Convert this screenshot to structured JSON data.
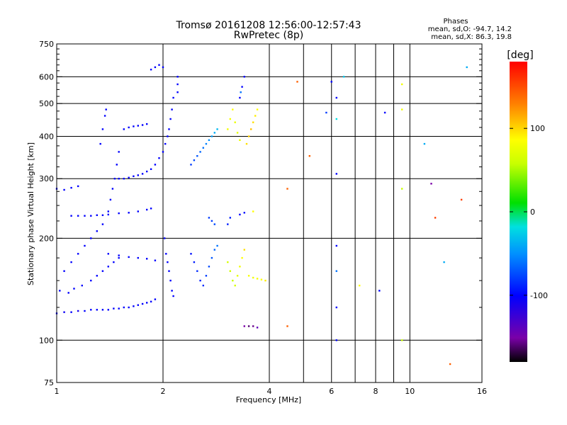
{
  "chart_data": {
    "type": "scatter",
    "title": "Tromsø 20161208 12:56:00-12:57:43",
    "subtitle": "RwPretec (8p)",
    "xlabel": "Frequency [MHz]",
    "ylabel": "Stationary phase Virtual Height [km]",
    "x_scale": "log",
    "y_scale": "log",
    "xlim": [
      1,
      16
    ],
    "ylim": [
      75,
      750
    ],
    "x_ticks": [
      1,
      2,
      4,
      6,
      8,
      10,
      16
    ],
    "x_tick_labels": [
      "1",
      "2",
      "4",
      "6",
      "8",
      "10",
      "16"
    ],
    "x_minor_ticks": [
      5,
      7,
      9
    ],
    "y_ticks": [
      75,
      100,
      200,
      300,
      400,
      500,
      600,
      750
    ],
    "y_tick_labels": [
      "75",
      "100",
      "200",
      "300",
      "400",
      "500",
      "600",
      "750"
    ],
    "y_minor_ticks": [
      125,
      150,
      175,
      225,
      250,
      275,
      325,
      350,
      375,
      425,
      450,
      475,
      525,
      550,
      575,
      625,
      650,
      675,
      700,
      725
    ],
    "grid": true,
    "colorbar": {
      "label": "[deg]",
      "range": [
        -180,
        180
      ],
      "ticks": [
        100,
        0,
        -100
      ],
      "tick_labels": [
        "100",
        "0",
        "-100"
      ]
    },
    "phases": {
      "title": "Phases",
      "line_o": "mean, sd,O: -94.7, 14.2",
      "line_x": "mean, sd,X:  86.3, 19.8"
    },
    "points": [
      {
        "f": 1.0,
        "h": 120,
        "p": -100
      },
      {
        "f": 1.05,
        "h": 121,
        "p": -105
      },
      {
        "f": 1.1,
        "h": 121,
        "p": -100
      },
      {
        "f": 1.15,
        "h": 122,
        "p": -110
      },
      {
        "f": 1.2,
        "h": 122,
        "p": -100
      },
      {
        "f": 1.25,
        "h": 123,
        "p": -100
      },
      {
        "f": 1.3,
        "h": 123,
        "p": -100
      },
      {
        "f": 1.35,
        "h": 123,
        "p": -100
      },
      {
        "f": 1.4,
        "h": 123,
        "p": -100
      },
      {
        "f": 1.45,
        "h": 124,
        "p": -100
      },
      {
        "f": 1.5,
        "h": 124,
        "p": -100
      },
      {
        "f": 1.55,
        "h": 125,
        "p": -100
      },
      {
        "f": 1.6,
        "h": 125,
        "p": -100
      },
      {
        "f": 1.65,
        "h": 126,
        "p": -100
      },
      {
        "f": 1.7,
        "h": 127,
        "p": -100
      },
      {
        "f": 1.75,
        "h": 128,
        "p": -100
      },
      {
        "f": 1.8,
        "h": 129,
        "p": -100
      },
      {
        "f": 1.85,
        "h": 130,
        "p": -100
      },
      {
        "f": 1.9,
        "h": 132,
        "p": -100
      },
      {
        "f": 1.02,
        "h": 140,
        "p": -100
      },
      {
        "f": 1.08,
        "h": 138,
        "p": -100
      },
      {
        "f": 1.12,
        "h": 142,
        "p": -100
      },
      {
        "f": 1.18,
        "h": 145,
        "p": -100
      },
      {
        "f": 1.25,
        "h": 150,
        "p": -100
      },
      {
        "f": 1.3,
        "h": 155,
        "p": -100
      },
      {
        "f": 1.35,
        "h": 160,
        "p": -100
      },
      {
        "f": 1.4,
        "h": 165,
        "p": -100
      },
      {
        "f": 1.45,
        "h": 170,
        "p": -100
      },
      {
        "f": 1.5,
        "h": 175,
        "p": -100
      },
      {
        "f": 1.05,
        "h": 160,
        "p": -100
      },
      {
        "f": 1.1,
        "h": 170,
        "p": -100
      },
      {
        "f": 1.15,
        "h": 180,
        "p": -100
      },
      {
        "f": 1.2,
        "h": 190,
        "p": -100
      },
      {
        "f": 1.25,
        "h": 200,
        "p": -100
      },
      {
        "f": 1.3,
        "h": 210,
        "p": -100
      },
      {
        "f": 1.35,
        "h": 220,
        "p": -100
      },
      {
        "f": 1.4,
        "h": 240,
        "p": -100
      },
      {
        "f": 1.42,
        "h": 260,
        "p": -100
      },
      {
        "f": 1.44,
        "h": 280,
        "p": -100
      },
      {
        "f": 1.46,
        "h": 300,
        "p": -100
      },
      {
        "f": 1.48,
        "h": 330,
        "p": -100
      },
      {
        "f": 1.5,
        "h": 360,
        "p": -100
      },
      {
        "f": 1.33,
        "h": 380,
        "p": -100
      },
      {
        "f": 1.35,
        "h": 420,
        "p": -100
      },
      {
        "f": 1.37,
        "h": 460,
        "p": -100
      },
      {
        "f": 1.38,
        "h": 480,
        "p": -100
      },
      {
        "f": 1.0,
        "h": 280,
        "p": -100
      },
      {
        "f": 1.05,
        "h": 278,
        "p": -100
      },
      {
        "f": 1.1,
        "h": 282,
        "p": -100
      },
      {
        "f": 1.15,
        "h": 285,
        "p": -100
      },
      {
        "f": 1.1,
        "h": 233,
        "p": -100
      },
      {
        "f": 1.15,
        "h": 233,
        "p": -100
      },
      {
        "f": 1.2,
        "h": 233,
        "p": -100
      },
      {
        "f": 1.25,
        "h": 233,
        "p": -100
      },
      {
        "f": 1.3,
        "h": 234,
        "p": -100
      },
      {
        "f": 1.35,
        "h": 234,
        "p": -100
      },
      {
        "f": 1.4,
        "h": 235,
        "p": -100
      },
      {
        "f": 1.5,
        "h": 237,
        "p": -100
      },
      {
        "f": 1.6,
        "h": 238,
        "p": -100
      },
      {
        "f": 1.7,
        "h": 240,
        "p": -100
      },
      {
        "f": 1.8,
        "h": 243,
        "p": -100
      },
      {
        "f": 1.85,
        "h": 245,
        "p": -100
      },
      {
        "f": 1.4,
        "h": 180,
        "p": -100
      },
      {
        "f": 1.5,
        "h": 178,
        "p": -100
      },
      {
        "f": 1.6,
        "h": 176,
        "p": -100
      },
      {
        "f": 1.7,
        "h": 175,
        "p": -100
      },
      {
        "f": 1.8,
        "h": 174,
        "p": -100
      },
      {
        "f": 1.9,
        "h": 172,
        "p": -100
      },
      {
        "f": 1.5,
        "h": 300,
        "p": -100
      },
      {
        "f": 1.55,
        "h": 300,
        "p": -100
      },
      {
        "f": 1.6,
        "h": 302,
        "p": -100
      },
      {
        "f": 1.65,
        "h": 305,
        "p": -100
      },
      {
        "f": 1.7,
        "h": 307,
        "p": -100
      },
      {
        "f": 1.75,
        "h": 310,
        "p": -100
      },
      {
        "f": 1.8,
        "h": 315,
        "p": -100
      },
      {
        "f": 1.85,
        "h": 320,
        "p": -100
      },
      {
        "f": 1.9,
        "h": 330,
        "p": -100
      },
      {
        "f": 1.95,
        "h": 345,
        "p": -100
      },
      {
        "f": 2.0,
        "h": 360,
        "p": -100
      },
      {
        "f": 2.03,
        "h": 380,
        "p": -100
      },
      {
        "f": 2.06,
        "h": 400,
        "p": -100
      },
      {
        "f": 2.08,
        "h": 420,
        "p": -100
      },
      {
        "f": 2.1,
        "h": 450,
        "p": -100
      },
      {
        "f": 2.12,
        "h": 480,
        "p": -100
      },
      {
        "f": 2.14,
        "h": 520,
        "p": -100
      },
      {
        "f": 1.55,
        "h": 420,
        "p": -100
      },
      {
        "f": 1.6,
        "h": 425,
        "p": -100
      },
      {
        "f": 1.65,
        "h": 428,
        "p": -100
      },
      {
        "f": 1.7,
        "h": 430,
        "p": -100
      },
      {
        "f": 1.75,
        "h": 432,
        "p": -100
      },
      {
        "f": 1.8,
        "h": 435,
        "p": -100
      },
      {
        "f": 1.9,
        "h": 640,
        "p": -100
      },
      {
        "f": 1.95,
        "h": 650,
        "p": -100
      },
      {
        "f": 2.0,
        "h": 640,
        "p": -100
      },
      {
        "f": 1.85,
        "h": 630,
        "p": -100
      },
      {
        "f": 2.2,
        "h": 600,
        "p": -100
      },
      {
        "f": 2.2,
        "h": 570,
        "p": -100
      },
      {
        "f": 2.2,
        "h": 540,
        "p": -100
      },
      {
        "f": 2.02,
        "h": 200,
        "p": -100
      },
      {
        "f": 2.04,
        "h": 180,
        "p": -100
      },
      {
        "f": 2.06,
        "h": 170,
        "p": -100
      },
      {
        "f": 2.08,
        "h": 160,
        "p": -100
      },
      {
        "f": 2.1,
        "h": 150,
        "p": -100
      },
      {
        "f": 2.12,
        "h": 140,
        "p": -100
      },
      {
        "f": 2.14,
        "h": 135,
        "p": -100
      },
      {
        "f": 2.4,
        "h": 180,
        "p": -95
      },
      {
        "f": 2.45,
        "h": 170,
        "p": -90
      },
      {
        "f": 2.5,
        "h": 160,
        "p": -85
      },
      {
        "f": 2.55,
        "h": 150,
        "p": -90
      },
      {
        "f": 2.6,
        "h": 145,
        "p": -85
      },
      {
        "f": 2.65,
        "h": 155,
        "p": -80
      },
      {
        "f": 2.7,
        "h": 165,
        "p": -75
      },
      {
        "f": 2.75,
        "h": 175,
        "p": -70
      },
      {
        "f": 2.8,
        "h": 185,
        "p": -65
      },
      {
        "f": 2.85,
        "h": 190,
        "p": -60
      },
      {
        "f": 2.4,
        "h": 330,
        "p": -80
      },
      {
        "f": 2.45,
        "h": 340,
        "p": -75
      },
      {
        "f": 2.5,
        "h": 350,
        "p": -70
      },
      {
        "f": 2.55,
        "h": 360,
        "p": -65
      },
      {
        "f": 2.6,
        "h": 370,
        "p": -60
      },
      {
        "f": 2.65,
        "h": 380,
        "p": -55
      },
      {
        "f": 2.7,
        "h": 390,
        "p": -50
      },
      {
        "f": 2.75,
        "h": 400,
        "p": -45
      },
      {
        "f": 2.8,
        "h": 410,
        "p": -40
      },
      {
        "f": 2.85,
        "h": 420,
        "p": -35
      },
      {
        "f": 2.7,
        "h": 230,
        "p": -80
      },
      {
        "f": 2.75,
        "h": 225,
        "p": -80
      },
      {
        "f": 2.8,
        "h": 220,
        "p": -75
      },
      {
        "f": 3.05,
        "h": 420,
        "p": 90
      },
      {
        "f": 3.1,
        "h": 450,
        "p": 95
      },
      {
        "f": 3.15,
        "h": 480,
        "p": 100
      },
      {
        "f": 3.2,
        "h": 440,
        "p": 85
      },
      {
        "f": 3.25,
        "h": 410,
        "p": 80
      },
      {
        "f": 3.3,
        "h": 390,
        "p": 85
      },
      {
        "f": 3.3,
        "h": 520,
        "p": -100
      },
      {
        "f": 3.35,
        "h": 560,
        "p": -100
      },
      {
        "f": 3.4,
        "h": 600,
        "p": -100
      },
      {
        "f": 3.32,
        "h": 540,
        "p": -60
      },
      {
        "f": 3.45,
        "h": 380,
        "p": 110
      },
      {
        "f": 3.5,
        "h": 400,
        "p": 115
      },
      {
        "f": 3.55,
        "h": 420,
        "p": 120
      },
      {
        "f": 3.6,
        "h": 440,
        "p": 110
      },
      {
        "f": 3.65,
        "h": 460,
        "p": 105
      },
      {
        "f": 3.7,
        "h": 480,
        "p": 100
      },
      {
        "f": 3.05,
        "h": 170,
        "p": 70
      },
      {
        "f": 3.1,
        "h": 160,
        "p": 65
      },
      {
        "f": 3.15,
        "h": 150,
        "p": 60
      },
      {
        "f": 3.2,
        "h": 145,
        "p": 70
      },
      {
        "f": 3.25,
        "h": 155,
        "p": 80
      },
      {
        "f": 3.3,
        "h": 165,
        "p": 90
      },
      {
        "f": 3.35,
        "h": 175,
        "p": 100
      },
      {
        "f": 3.4,
        "h": 185,
        "p": 110
      },
      {
        "f": 3.5,
        "h": 155,
        "p": 95
      },
      {
        "f": 3.6,
        "h": 153,
        "p": 90
      },
      {
        "f": 3.7,
        "h": 152,
        "p": 95
      },
      {
        "f": 3.8,
        "h": 151,
        "p": 100
      },
      {
        "f": 3.9,
        "h": 150,
        "p": 105
      },
      {
        "f": 3.05,
        "h": 220,
        "p": -90
      },
      {
        "f": 3.1,
        "h": 230,
        "p": -90
      },
      {
        "f": 3.3,
        "h": 235,
        "p": -100
      },
      {
        "f": 3.4,
        "h": 238,
        "p": -95
      },
      {
        "f": 3.6,
        "h": 240,
        "p": 100
      },
      {
        "f": 3.4,
        "h": 110,
        "p": -150
      },
      {
        "f": 3.5,
        "h": 110,
        "p": -160
      },
      {
        "f": 3.6,
        "h": 110,
        "p": -155
      },
      {
        "f": 3.7,
        "h": 109,
        "p": -140
      },
      {
        "f": 4.5,
        "h": 110,
        "p": 150
      },
      {
        "f": 4.5,
        "h": 280,
        "p": 150
      },
      {
        "f": 4.8,
        "h": 580,
        "p": 150
      },
      {
        "f": 5.2,
        "h": 350,
        "p": 150
      },
      {
        "f": 5.8,
        "h": 470,
        "p": -80
      },
      {
        "f": 6.0,
        "h": 580,
        "p": -100
      },
      {
        "f": 6.2,
        "h": 520,
        "p": -100
      },
      {
        "f": 6.2,
        "h": 450,
        "p": -20
      },
      {
        "f": 6.2,
        "h": 310,
        "p": -100
      },
      {
        "f": 6.2,
        "h": 190,
        "p": -100
      },
      {
        "f": 6.2,
        "h": 160,
        "p": -60
      },
      {
        "f": 6.2,
        "h": 125,
        "p": -100
      },
      {
        "f": 6.2,
        "h": 100,
        "p": -100
      },
      {
        "f": 6.5,
        "h": 600,
        "p": -30
      },
      {
        "f": 7.2,
        "h": 145,
        "p": 100
      },
      {
        "f": 8.2,
        "h": 140,
        "p": -100
      },
      {
        "f": 8.5,
        "h": 470,
        "p": -100
      },
      {
        "f": 9.5,
        "h": 570,
        "p": 90
      },
      {
        "f": 9.5,
        "h": 480,
        "p": 90
      },
      {
        "f": 9.5,
        "h": 280,
        "p": 60
      },
      {
        "f": 9.5,
        "h": 100,
        "p": 60
      },
      {
        "f": 11.0,
        "h": 380,
        "p": -40
      },
      {
        "f": 11.5,
        "h": 290,
        "p": -150
      },
      {
        "f": 11.8,
        "h": 230,
        "p": 160
      },
      {
        "f": 12.5,
        "h": 170,
        "p": -40
      },
      {
        "f": 13.0,
        "h": 85,
        "p": 150
      },
      {
        "f": 14.0,
        "h": 260,
        "p": 160
      },
      {
        "f": 14.5,
        "h": 640,
        "p": -40
      }
    ]
  }
}
